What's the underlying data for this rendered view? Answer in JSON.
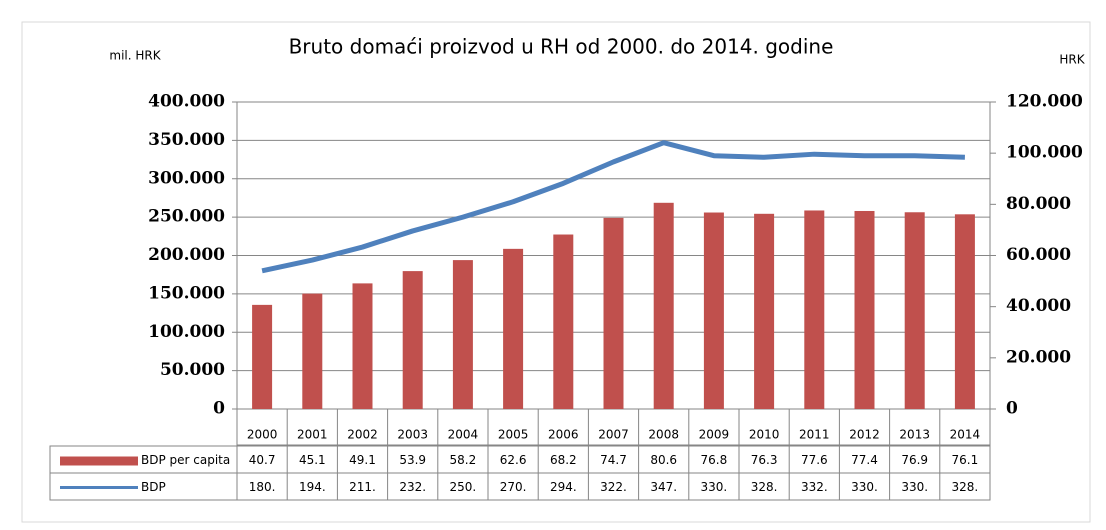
{
  "chart_data": {
    "type": "bar",
    "title": "Bruto domaći proizvod u RH od 2000. do 2014. godine",
    "y_label": "mil. HRK",
    "y2_label": "HRK",
    "categories": [
      "2000",
      "2001",
      "2002",
      "2003",
      "2004",
      "2005",
      "2006",
      "2007",
      "2008",
      "2009",
      "2010",
      "2011",
      "2012",
      "2013",
      "2014"
    ],
    "series": [
      {
        "name": "BDP per capita",
        "type": "bar",
        "axis": "y2",
        "color": "#c0504d",
        "values": [
          40700,
          45100,
          49100,
          53900,
          58200,
          62600,
          68200,
          74700,
          80600,
          76800,
          76300,
          77600,
          77400,
          76900,
          76100
        ],
        "value_labels": [
          "40.7",
          "45.1",
          "49.1",
          "53.9",
          "58.2",
          "62.6",
          "68.2",
          "74.7",
          "80.6",
          "76.8",
          "76.3",
          "77.6",
          "77.4",
          "76.9",
          "76.1"
        ]
      },
      {
        "name": "BDP",
        "type": "line",
        "axis": "y",
        "color": "#4f81bd",
        "values": [
          180000,
          194000,
          211000,
          232000,
          250000,
          270000,
          294000,
          322000,
          347000,
          330000,
          328000,
          332000,
          330000,
          330000,
          328000
        ],
        "value_labels": [
          "180.",
          "194.",
          "211.",
          "232.",
          "250.",
          "270.",
          "294.",
          "322.",
          "347.",
          "330.",
          "328.",
          "332.",
          "330.",
          "330.",
          "328."
        ]
      }
    ],
    "ylim": [
      0,
      400000
    ],
    "yticks": [
      0,
      {
        "value": 50000,
        "label": "50.000"
      },
      {
        "value": 100000,
        "label": "100.000"
      },
      {
        "value": 150000,
        "label": "150.000"
      },
      {
        "value": 200000,
        "label": "200.000"
      },
      {
        "value": 250000,
        "label": "250.000"
      },
      {
        "value": 300000,
        "label": "300.000"
      },
      {
        "value": 350000,
        "label": "350.000"
      },
      {
        "value": 400000,
        "label": "400.000"
      }
    ],
    "y2lim": [
      0,
      120000
    ],
    "y2ticks": [
      0,
      {
        "value": 20000,
        "label": "20.000"
      },
      {
        "value": 40000,
        "label": "40.000"
      },
      {
        "value": 60000,
        "label": "60.000"
      },
      {
        "value": 80000,
        "label": "80.000"
      },
      {
        "value": 100000,
        "label": "100.000"
      },
      {
        "value": 120000,
        "label": "120.000"
      }
    ],
    "grid": true
  }
}
